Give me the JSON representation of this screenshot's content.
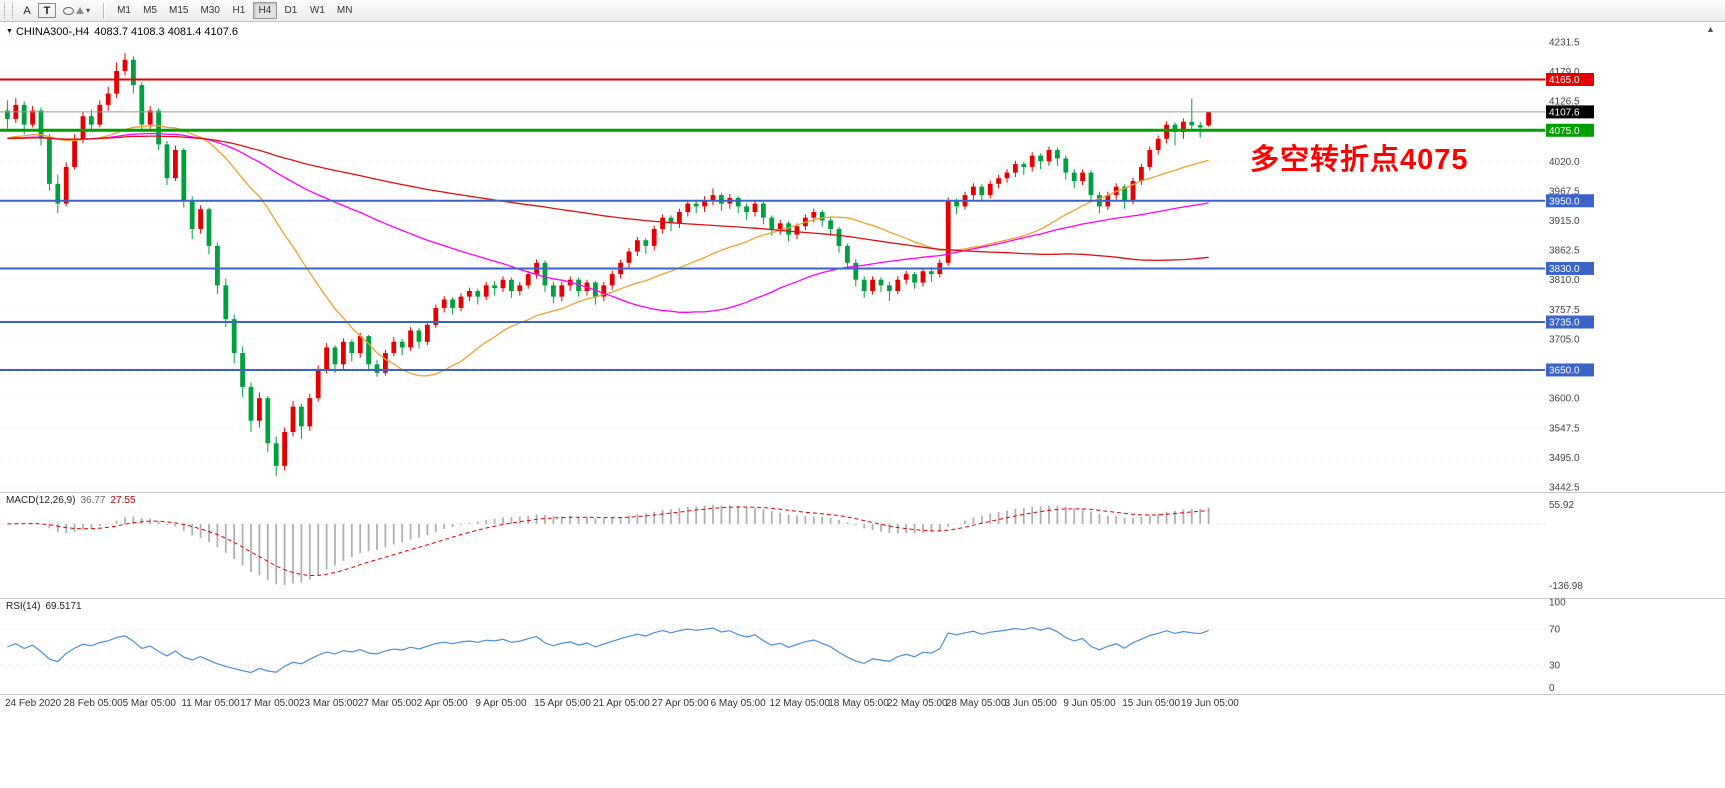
{
  "toolbar": {
    "tool_a": "A",
    "tool_t": "T",
    "timeframes": [
      "M1",
      "M5",
      "M15",
      "M30",
      "H1",
      "H4",
      "D1",
      "W1",
      "MN"
    ],
    "active_timeframe": "H4"
  },
  "chart": {
    "title_symbol": "CHINA300-,H4",
    "title_ohlc": "4083.7 4108.3 4081.4 4107.6",
    "annotation_text": "多空转折点4075",
    "annotation_color": "#ff0000",
    "macd_name": "MACD(12,26,9)",
    "macd_main": "36.77",
    "macd_signal": "27.55",
    "rsi_name": "RSI(14)",
    "rsi_value": "69.5171"
  },
  "chart_data": {
    "type": "candlestick",
    "symbol": "CHINA300-",
    "timeframe": "H4",
    "last_ohlc": {
      "open": 4083.7,
      "high": 4108.3,
      "low": 4081.4,
      "close": 4107.6
    },
    "colors": {
      "up": "#e60000",
      "down": "#00a040"
    },
    "price_axis": {
      "min": 3442.5,
      "max": 4231.5,
      "step": 52.5,
      "ticks": [
        4231.5,
        4179.0,
        4126.5,
        4074.0,
        4020.0,
        3967.5,
        3915.0,
        3862.5,
        3810.0,
        3757.5,
        3705.0,
        3652.5,
        3600.0,
        3547.5,
        3495.0,
        3442.5
      ]
    },
    "levels": [
      {
        "value": 4165.0,
        "label": "4165.0",
        "color": "#e60000",
        "width": 2
      },
      {
        "value": 4075.0,
        "label": "4075.0",
        "color": "#00a000",
        "width": 3
      },
      {
        "value": 3950.0,
        "label": "3950.0",
        "color": "#3a64c8",
        "width": 2
      },
      {
        "value": 3830.0,
        "label": "3830.0",
        "color": "#3a64c8",
        "width": 2
      },
      {
        "value": 3735.0,
        "label": "3735.0",
        "color": "#3a64c8",
        "width": 2
      },
      {
        "value": 3650.0,
        "label": "3650.0",
        "color": "#3a64c8",
        "width": 2
      }
    ],
    "current_price": {
      "value": 4107.6,
      "label": "4107.6",
      "color": "#000000"
    },
    "ma_seed": 4060,
    "moving_averages": [
      {
        "period": 24,
        "color": "#f0a030"
      },
      {
        "period": 60,
        "color": "#ff00ff"
      },
      {
        "period": 120,
        "color": "#dd1111"
      }
    ],
    "macd": {
      "params": "12,26,9",
      "main_value": 36.77,
      "signal_value": 27.55,
      "axis_max_label": "55.92",
      "axis_min_label": "-136.98",
      "histogram_color": "#b0b0b0",
      "signal_color": "#e00000"
    },
    "rsi": {
      "period": 14,
      "value": 69.5171,
      "color": "#4a90d8",
      "overbought": 70,
      "oversold": 30,
      "axis_labels": [
        "100",
        "70",
        "30",
        "0"
      ]
    },
    "x_label_every": 7,
    "x_labels": [
      "24 Feb 2020",
      "28 Feb 05:00",
      "5 Mar 05:00",
      "11 Mar 05:00",
      "17 Mar 05:00",
      "23 Mar 05:00",
      "27 Mar 05:00",
      "2 Apr 05:00",
      "9 Apr 05:00",
      "15 Apr 05:00",
      "21 Apr 05:00",
      "27 Apr 05:00",
      "6 May 05:00",
      "12 May 05:00",
      "18 May 05:00",
      "22 May 05:00",
      "28 May 05:00",
      "3 Jun 05:00",
      "9 Jun 05:00",
      "15 Jun 05:00",
      "19 Jun 05:00"
    ],
    "candles": [
      [
        4110,
        4128,
        4078,
        4095
      ],
      [
        4095,
        4132,
        4088,
        4120
      ],
      [
        4120,
        4126,
        4068,
        4085
      ],
      [
        4085,
        4118,
        4080,
        4110
      ],
      [
        4110,
        4115,
        4048,
        4060
      ],
      [
        4060,
        4068,
        3968,
        3980
      ],
      [
        3980,
        3996,
        3928,
        3945
      ],
      [
        3945,
        4018,
        3940,
        4010
      ],
      [
        4010,
        4068,
        4005,
        4060
      ],
      [
        4060,
        4108,
        4052,
        4100
      ],
      [
        4100,
        4112,
        4072,
        4085
      ],
      [
        4085,
        4128,
        4080,
        4120
      ],
      [
        4120,
        4152,
        4110,
        4140
      ],
      [
        4140,
        4195,
        4132,
        4180
      ],
      [
        4180,
        4212,
        4172,
        4200
      ],
      [
        4200,
        4206,
        4140,
        4155
      ],
      [
        4155,
        4160,
        4072,
        4085
      ],
      [
        4085,
        4118,
        4078,
        4110
      ],
      [
        4110,
        4114,
        4040,
        4050
      ],
      [
        4050,
        4056,
        3978,
        3990
      ],
      [
        3990,
        4048,
        3985,
        4040
      ],
      [
        4040,
        4044,
        3938,
        3950
      ],
      [
        3950,
        3958,
        3882,
        3900
      ],
      [
        3900,
        3942,
        3892,
        3935
      ],
      [
        3935,
        3938,
        3855,
        3870
      ],
      [
        3870,
        3876,
        3785,
        3800
      ],
      [
        3800,
        3812,
        3726,
        3740
      ],
      [
        3740,
        3748,
        3662,
        3680
      ],
      [
        3680,
        3692,
        3602,
        3620
      ],
      [
        3620,
        3628,
        3540,
        3560
      ],
      [
        3560,
        3610,
        3548,
        3600
      ],
      [
        3600,
        3604,
        3505,
        3520
      ],
      [
        3520,
        3532,
        3462,
        3480
      ],
      [
        3480,
        3548,
        3472,
        3540
      ],
      [
        3540,
        3595,
        3532,
        3585
      ],
      [
        3585,
        3590,
        3528,
        3550
      ],
      [
        3550,
        3608,
        3542,
        3600
      ],
      [
        3600,
        3658,
        3594,
        3650
      ],
      [
        3650,
        3698,
        3644,
        3690
      ],
      [
        3690,
        3694,
        3645,
        3660
      ],
      [
        3660,
        3706,
        3652,
        3700
      ],
      [
        3700,
        3704,
        3665,
        3680
      ],
      [
        3680,
        3716,
        3672,
        3710
      ],
      [
        3710,
        3712,
        3648,
        3660
      ],
      [
        3660,
        3668,
        3638,
        3645
      ],
      [
        3645,
        3686,
        3640,
        3680
      ],
      [
        3680,
        3708,
        3674,
        3700
      ],
      [
        3700,
        3705,
        3676,
        3690
      ],
      [
        3690,
        3726,
        3684,
        3720
      ],
      [
        3720,
        3724,
        3688,
        3700
      ],
      [
        3700,
        3736,
        3694,
        3730
      ],
      [
        3730,
        3766,
        3724,
        3760
      ],
      [
        3760,
        3781,
        3752,
        3775
      ],
      [
        3775,
        3779,
        3748,
        3760
      ],
      [
        3760,
        3786,
        3754,
        3780
      ],
      [
        3780,
        3796,
        3772,
        3790
      ],
      [
        3790,
        3794,
        3766,
        3780
      ],
      [
        3780,
        3806,
        3774,
        3800
      ],
      [
        3800,
        3808,
        3782,
        3795
      ],
      [
        3795,
        3816,
        3788,
        3810
      ],
      [
        3810,
        3814,
        3778,
        3790
      ],
      [
        3790,
        3806,
        3782,
        3800
      ],
      [
        3800,
        3826,
        3794,
        3820
      ],
      [
        3820,
        3846,
        3812,
        3840
      ],
      [
        3840,
        3844,
        3788,
        3800
      ],
      [
        3800,
        3806,
        3768,
        3780
      ],
      [
        3780,
        3806,
        3772,
        3800
      ],
      [
        3800,
        3816,
        3790,
        3810
      ],
      [
        3810,
        3814,
        3780,
        3790
      ],
      [
        3790,
        3810,
        3782,
        3805
      ],
      [
        3805,
        3808,
        3766,
        3780
      ],
      [
        3780,
        3806,
        3772,
        3800
      ],
      [
        3800,
        3826,
        3792,
        3820
      ],
      [
        3820,
        3846,
        3812,
        3840
      ],
      [
        3840,
        3866,
        3832,
        3860
      ],
      [
        3860,
        3886,
        3852,
        3880
      ],
      [
        3880,
        3884,
        3856,
        3870
      ],
      [
        3870,
        3906,
        3862,
        3900
      ],
      [
        3900,
        3926,
        3892,
        3920
      ],
      [
        3920,
        3924,
        3896,
        3910
      ],
      [
        3910,
        3936,
        3902,
        3930
      ],
      [
        3930,
        3950,
        3922,
        3945
      ],
      [
        3945,
        3952,
        3928,
        3940
      ],
      [
        3940,
        3958,
        3930,
        3950
      ],
      [
        3950,
        3972,
        3942,
        3960
      ],
      [
        3960,
        3964,
        3932,
        3945
      ],
      [
        3945,
        3962,
        3936,
        3955
      ],
      [
        3955,
        3958,
        3928,
        3940
      ],
      [
        3940,
        3946,
        3916,
        3930
      ],
      [
        3930,
        3950,
        3922,
        3945
      ],
      [
        3945,
        3948,
        3908,
        3920
      ],
      [
        3920,
        3924,
        3888,
        3900
      ],
      [
        3900,
        3916,
        3890,
        3910
      ],
      [
        3910,
        3914,
        3878,
        3890
      ],
      [
        3890,
        3910,
        3882,
        3905
      ],
      [
        3905,
        3926,
        3898,
        3920
      ],
      [
        3920,
        3936,
        3912,
        3930
      ],
      [
        3930,
        3934,
        3904,
        3915
      ],
      [
        3915,
        3920,
        3888,
        3900
      ],
      [
        3900,
        3904,
        3858,
        3870
      ],
      [
        3870,
        3874,
        3828,
        3840
      ],
      [
        3840,
        3846,
        3798,
        3810
      ],
      [
        3810,
        3816,
        3778,
        3790
      ],
      [
        3790,
        3816,
        3784,
        3810
      ],
      [
        3810,
        3814,
        3788,
        3800
      ],
      [
        3800,
        3806,
        3772,
        3790
      ],
      [
        3790,
        3816,
        3784,
        3810
      ],
      [
        3810,
        3826,
        3802,
        3820
      ],
      [
        3820,
        3824,
        3794,
        3805
      ],
      [
        3805,
        3830,
        3798,
        3825
      ],
      [
        3825,
        3832,
        3806,
        3820
      ],
      [
        3820,
        3846,
        3814,
        3840
      ],
      [
        3840,
        3956,
        3834,
        3950
      ],
      [
        3950,
        3954,
        3926,
        3940
      ],
      [
        3940,
        3966,
        3934,
        3960
      ],
      [
        3960,
        3981,
        3952,
        3975
      ],
      [
        3975,
        3979,
        3948,
        3960
      ],
      [
        3960,
        3986,
        3954,
        3980
      ],
      [
        3980,
        3996,
        3972,
        3990
      ],
      [
        3990,
        4006,
        3982,
        4000
      ],
      [
        4000,
        4021,
        3992,
        4015
      ],
      [
        4015,
        4019,
        3996,
        4010
      ],
      [
        4010,
        4036,
        4002,
        4030
      ],
      [
        4030,
        4034,
        4006,
        4020
      ],
      [
        4020,
        4046,
        4012,
        4040
      ],
      [
        4040,
        4044,
        4012,
        4025
      ],
      [
        4025,
        4030,
        3988,
        4000
      ],
      [
        4000,
        4006,
        3972,
        3985
      ],
      [
        3985,
        4006,
        3978,
        4000
      ],
      [
        4000,
        4004,
        3948,
        3960
      ],
      [
        3960,
        3966,
        3928,
        3940
      ],
      [
        3940,
        3966,
        3934,
        3960
      ],
      [
        3960,
        3981,
        3952,
        3975
      ],
      [
        3975,
        3979,
        3936,
        3950
      ],
      [
        3950,
        3991,
        3944,
        3985
      ],
      [
        3985,
        4016,
        3978,
        4010
      ],
      [
        4010,
        4046,
        4004,
        4040
      ],
      [
        4040,
        4066,
        4032,
        4060
      ],
      [
        4060,
        4091,
        4052,
        4085
      ],
      [
        4085,
        4089,
        4048,
        4072
      ],
      [
        4072,
        4096,
        4060,
        4090
      ],
      [
        4090,
        4131,
        4076,
        4084
      ],
      [
        4084,
        4090,
        4062,
        4080
      ],
      [
        4083.7,
        4108.3,
        4081.4,
        4107.6
      ]
    ]
  }
}
